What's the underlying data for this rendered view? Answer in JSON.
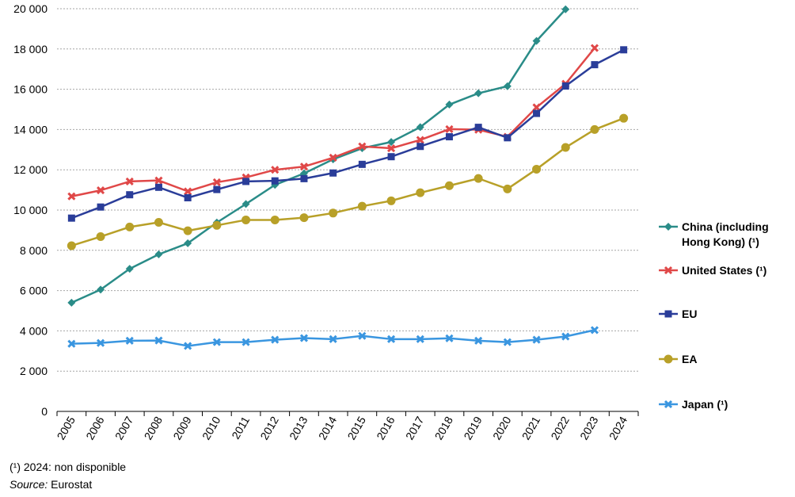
{
  "chart_data": {
    "type": "line",
    "title": "",
    "xlabel": "",
    "ylabel": "",
    "ylim": [
      0,
      20000
    ],
    "yticks": [
      0,
      2000,
      4000,
      6000,
      8000,
      10000,
      12000,
      14000,
      16000,
      18000,
      20000
    ],
    "ytick_labels": [
      "0",
      "2 000",
      "4 000",
      "6 000",
      "8 000",
      "10 000",
      "12 000",
      "14 000",
      "16 000",
      "18 000",
      "20 000"
    ],
    "grid": "horizontal dashed",
    "legend_position": "right",
    "categories": [
      "2005",
      "2006",
      "2007",
      "2008",
      "2009",
      "2010",
      "2011",
      "2012",
      "2013",
      "2014",
      "2015",
      "2016",
      "2017",
      "2018",
      "2019",
      "2020",
      "2021",
      "2022",
      "2023",
      "2024"
    ],
    "series": [
      {
        "name": "China (including Hong Kong) (¹)",
        "legend_lines": [
          "China (including",
          "Hong Kong) (¹)"
        ],
        "color": "#2a8c88",
        "marker": "diamond",
        "values": [
          5400,
          6050,
          7080,
          7800,
          8350,
          9380,
          10300,
          11250,
          11820,
          12520,
          13070,
          13380,
          14120,
          15240,
          15800,
          16150,
          18400,
          19970,
          null,
          null
        ]
      },
      {
        "name": "United States (¹)",
        "legend_lines": [
          "United States (¹)"
        ],
        "color": "#e04848",
        "marker": "x",
        "values": [
          10680,
          10980,
          11420,
          11470,
          10930,
          11380,
          11620,
          12000,
          12160,
          12600,
          13160,
          13070,
          13480,
          14020,
          13990,
          13640,
          15100,
          16270,
          18050,
          null
        ]
      },
      {
        "name": "EU",
        "legend_lines": [
          "EU"
        ],
        "color": "#2a3d99",
        "marker": "square",
        "values": [
          9600,
          10150,
          10760,
          11130,
          10610,
          11020,
          11420,
          11450,
          11560,
          11840,
          12270,
          12650,
          13160,
          13640,
          14110,
          13590,
          14800,
          16160,
          17220,
          17960
        ]
      },
      {
        "name": "EA",
        "legend_lines": [
          "EA"
        ],
        "color": "#b8a028",
        "marker": "circle",
        "values": [
          8230,
          8680,
          9160,
          9390,
          8970,
          9240,
          9510,
          9510,
          9620,
          9850,
          10190,
          10460,
          10860,
          11210,
          11570,
          11050,
          12030,
          13110,
          14000,
          14560
        ]
      },
      {
        "name": "Japan (¹)",
        "legend_lines": [
          "Japan (¹)"
        ],
        "color": "#3a96e0",
        "marker": "x",
        "values": [
          3360,
          3400,
          3510,
          3520,
          3250,
          3440,
          3440,
          3560,
          3640,
          3590,
          3750,
          3590,
          3590,
          3630,
          3510,
          3440,
          3560,
          3720,
          4040,
          null
        ]
      }
    ]
  },
  "footnotes": {
    "note": "(¹) 2024: non disponible",
    "source_label": "Source:",
    "source_value": " Eurostat"
  }
}
